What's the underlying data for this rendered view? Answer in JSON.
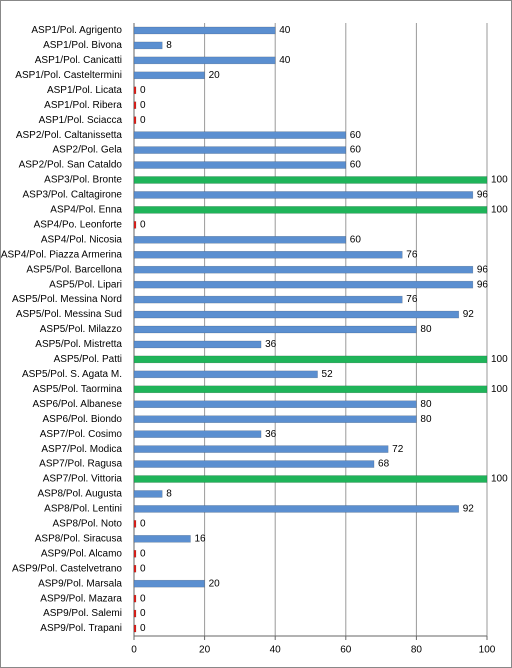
{
  "chart_data": {
    "type": "bar",
    "orientation": "horizontal",
    "categories": [
      "ASP1/Pol. Agrigento",
      "ASP1/Pol. Bivona",
      "ASP1/Pol. Canicatti",
      "ASP1/Pol. Casteltermini",
      "ASP1/Pol. Licata",
      "ASP1/Pol. Ribera",
      "ASP1/Pol. Sciacca",
      "ASP2/Pol. Caltanissetta",
      "ASP2/Pol. Gela",
      "ASP2/Pol. San Cataldo",
      "ASP3/Pol. Bronte",
      "ASP3/Pol. Caltagirone",
      "ASP4/Pol. Enna",
      "ASP4/Po. Leonforte",
      "ASP4/Pol. Nicosia",
      "ASP4/Pol. Piazza Armerina",
      "ASP5/Pol. Barcellona",
      "ASP5/Pol. Lipari",
      "ASP5/Pol. Messina Nord",
      "ASP5/Pol. Messina Sud",
      "ASP5/Pol. Milazzo",
      "ASP5/Pol. Mistretta",
      "ASP5/Pol. Patti",
      "ASP5/Pol. S. Agata M.",
      "ASP5/Pol. Taormina",
      "ASP6/Pol. Albanese",
      "ASP6/Pol. Biondo",
      "ASP7/Pol. Cosimo",
      "ASP7/Pol. Modica",
      "ASP7/Pol. Ragusa",
      "ASP7/Pol. Vittoria",
      "ASP8/Pol. Augusta",
      "ASP8/Pol. Lentini",
      "ASP8/Pol. Noto",
      "ASP8/Pol. Siracusa",
      "ASP9/Pol. Alcamo",
      "ASP9/Pol. Castelvetrano",
      "ASP9/Pol. Marsala",
      "ASP9/Pol. Mazara",
      "ASP9/Pol. Salemi",
      "ASP9/Pol. Trapani"
    ],
    "values": [
      40,
      8,
      40,
      20,
      0,
      0,
      0,
      60,
      60,
      60,
      100,
      96,
      100,
      0,
      60,
      76,
      96,
      96,
      76,
      92,
      80,
      36,
      100,
      52,
      100,
      80,
      80,
      36,
      72,
      68,
      100,
      8,
      92,
      0,
      16,
      0,
      0,
      20,
      0,
      0,
      0
    ],
    "colors": [
      "#5b8fd0",
      "#5b8fd0",
      "#5b8fd0",
      "#5b8fd0",
      "#e0201b",
      "#e0201b",
      "#e0201b",
      "#5b8fd0",
      "#5b8fd0",
      "#5b8fd0",
      "#1fb45a",
      "#5b8fd0",
      "#1fb45a",
      "#e0201b",
      "#5b8fd0",
      "#5b8fd0",
      "#5b8fd0",
      "#5b8fd0",
      "#5b8fd0",
      "#5b8fd0",
      "#5b8fd0",
      "#5b8fd0",
      "#1fb45a",
      "#5b8fd0",
      "#1fb45a",
      "#5b8fd0",
      "#5b8fd0",
      "#5b8fd0",
      "#5b8fd0",
      "#5b8fd0",
      "#1fb45a",
      "#5b8fd0",
      "#5b8fd0",
      "#e0201b",
      "#5b8fd0",
      "#e0201b",
      "#e0201b",
      "#5b8fd0",
      "#e0201b",
      "#e0201b",
      "#e0201b"
    ],
    "xlim": [
      0,
      100
    ],
    "xticks": [
      0,
      20,
      40,
      60,
      80,
      100
    ],
    "grid": true
  }
}
